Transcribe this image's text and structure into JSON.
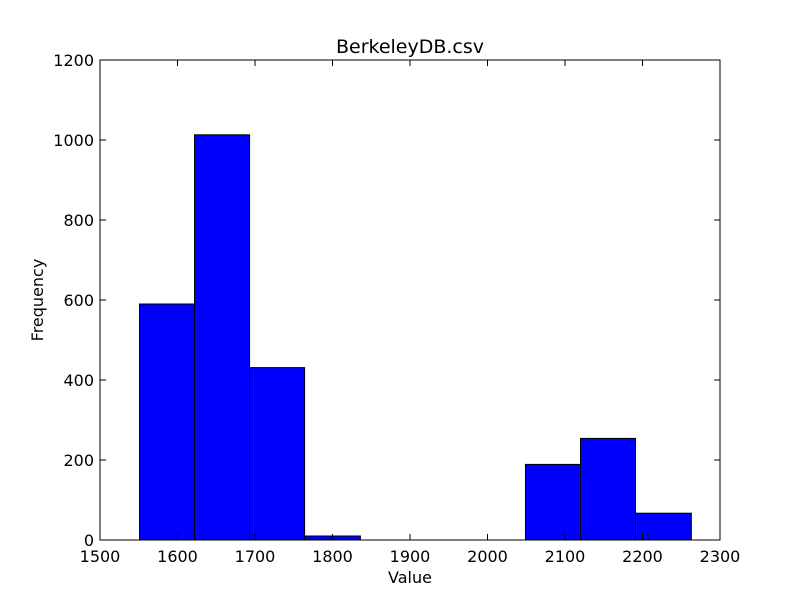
{
  "chart_data": {
    "type": "bar",
    "title": "BerkeleyDB.csv",
    "xlabel": "Value",
    "ylabel": "Frequency",
    "xlim": [
      1500,
      2300
    ],
    "ylim": [
      0,
      1200
    ],
    "xticks": [
      "1500",
      "1600",
      "1700",
      "1800",
      "1900",
      "2000",
      "2100",
      "2200",
      "2300"
    ],
    "yticks": [
      "0",
      "200",
      "400",
      "600",
      "800",
      "1000",
      "1200"
    ],
    "bin_edges": [
      1551,
      1622,
      1693,
      1764,
      1836,
      1907,
      1978,
      2049,
      2120,
      2191,
      2263
    ],
    "counts": [
      590,
      1013,
      431,
      10,
      0,
      0,
      0,
      189,
      254,
      67
    ],
    "bar_color": "#0000ff",
    "edge_color": "#000000",
    "grid": false,
    "legend": "none"
  }
}
